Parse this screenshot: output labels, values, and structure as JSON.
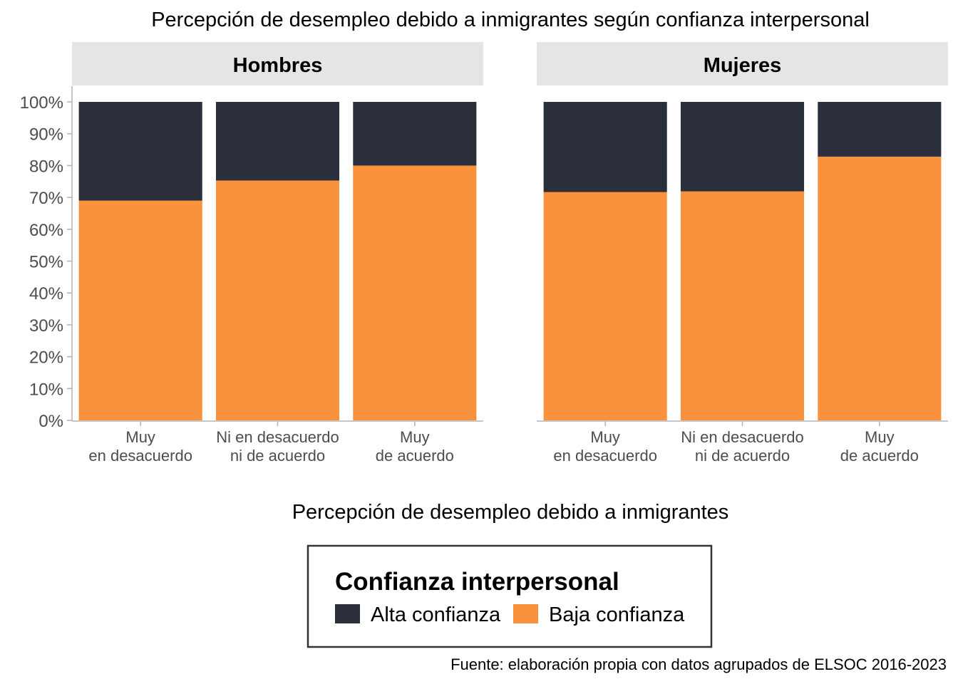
{
  "chart_data": {
    "type": "bar",
    "stacked": true,
    "title": "Percepción de desempleo debido a inmigrantes según confianza interpersonal",
    "xlabel": "Percepción de desempleo debido a inmigrantes",
    "ylabel": "",
    "ylim": [
      0,
      100
    ],
    "yticks": [
      "0%",
      "10%",
      "20%",
      "30%",
      "40%",
      "50%",
      "60%",
      "70%",
      "80%",
      "90%",
      "100%"
    ],
    "categories": [
      [
        "Muy",
        "en desacuerdo"
      ],
      [
        "Ni en desacuerdo",
        "ni de acuerdo"
      ],
      [
        "Muy",
        "de acuerdo"
      ]
    ],
    "facets": [
      {
        "name": "Hombres",
        "series": [
          {
            "name": "Baja confianza",
            "values": [
              69.0,
              75.3,
              80.0
            ]
          },
          {
            "name": "Alta confianza",
            "values": [
              31.0,
              24.7,
              20.0
            ]
          }
        ]
      },
      {
        "name": "Mujeres",
        "series": [
          {
            "name": "Baja confianza",
            "values": [
              71.7,
              71.9,
              82.8
            ]
          },
          {
            "name": "Alta confianza",
            "values": [
              28.3,
              28.1,
              17.2
            ]
          }
        ]
      }
    ],
    "colors": {
      "Alta confianza": "#2b2f3c",
      "Baja confianza": "#f9923d",
      "strip": "#e5e5e5",
      "axis": "#b3b3b3"
    },
    "legend": {
      "title": "Confianza interpersonal",
      "items": [
        "Alta confianza",
        "Baja confianza"
      ],
      "position": "bottom"
    },
    "caption": "Fuente: elaboración propia con datos agrupados de ELSOC 2016-2023",
    "grid": false
  }
}
